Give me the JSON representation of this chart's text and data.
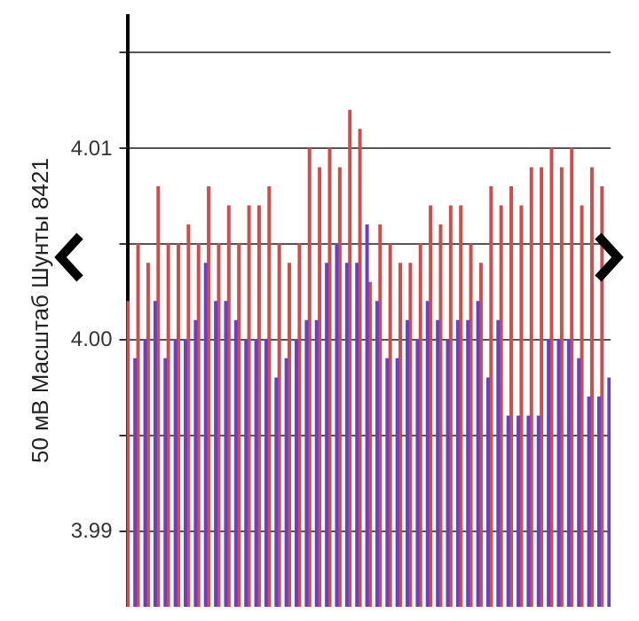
{
  "chart_data": {
    "type": "bar",
    "ylabel": "50 мВ Масштаб Шунты 8421",
    "categories": [
      null,
      null,
      null,
      null,
      null,
      null,
      null,
      null,
      null,
      null,
      null,
      null,
      null,
      null,
      null,
      null,
      null,
      null,
      null,
      null,
      null,
      null,
      null,
      null,
      null,
      null,
      null,
      null,
      null,
      null,
      null,
      null,
      null,
      null,
      null,
      null,
      null,
      null,
      null,
      null,
      null,
      null,
      null,
      null,
      null,
      null,
      null,
      null
    ],
    "series": [
      {
        "color": "#cc4f4f",
        "values": [
          4.002,
          4.005,
          4.004,
          4.008,
          4.005,
          4.005,
          4.006,
          4.005,
          4.008,
          4.005,
          4.007,
          4.005,
          4.007,
          4.007,
          4.008,
          4.005,
          4.004,
          4.005,
          4.01,
          4.009,
          4.01,
          4.009,
          4.012,
          4.011,
          4.003,
          4.006,
          4.005,
          4.004,
          4.004,
          4.005,
          4.007,
          4.006,
          4.007,
          4.007,
          4.005,
          4.004,
          4.008,
          4.007,
          4.008,
          4.007,
          4.009,
          4.009,
          4.01,
          4.009,
          4.01,
          4.007,
          4.009,
          4.008
        ]
      },
      {
        "color": "#6a3fc4",
        "values": [
          3.999,
          4.0,
          4.002,
          3.999,
          4.0,
          4.0,
          4.001,
          4.004,
          4.002,
          4.002,
          4.001,
          4.0,
          4.0,
          4.0,
          3.998,
          3.999,
          4.0,
          4.001,
          4.001,
          4.004,
          4.005,
          4.004,
          4.004,
          4.006,
          4.002,
          3.999,
          3.999,
          4.001,
          4.0,
          4.002,
          4.001,
          4.0,
          4.001,
          4.001,
          4.002,
          3.998,
          4.001,
          3.996,
          3.996,
          3.996,
          3.996,
          4.0,
          4.0,
          4.0,
          3.999,
          3.997,
          3.997,
          3.998
        ]
      }
    ],
    "ylim": [
      3.986,
      4.017
    ],
    "yticks": [
      3.99,
      {
        "value": 3.995,
        "label": null
      },
      {
        "value": 4,
        "label": "4.00"
      },
      {
        "value": 4.005,
        "label": null
      },
      4.01,
      {
        "value": 4.015,
        "label": null
      }
    ],
    "grid": "y"
  }
}
